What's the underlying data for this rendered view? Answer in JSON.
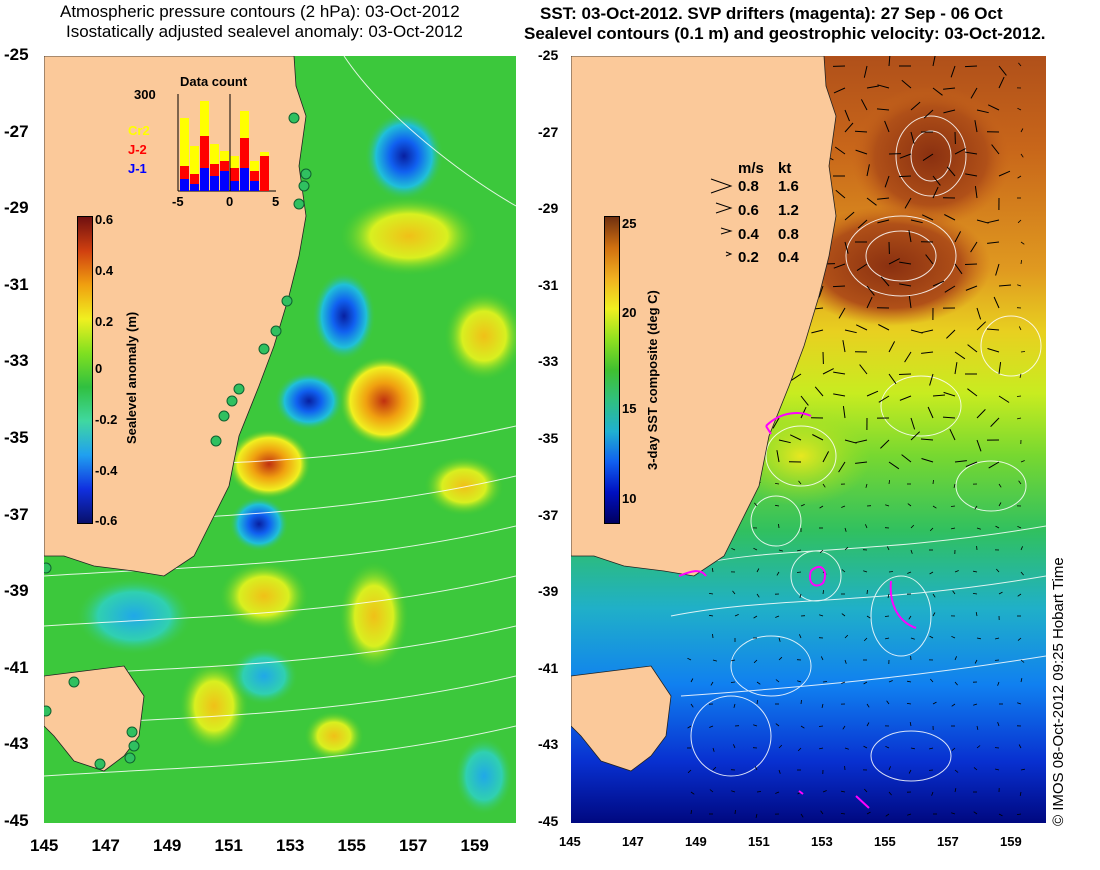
{
  "left": {
    "title_line1": "Atmospheric pressure contours (2 hPa): 03-Oct-2012",
    "title_line2": "Isostatically adjusted sealevel anomaly: 03-Oct-2012",
    "y_ticks": [
      "-25",
      "-27",
      "-29",
      "-31",
      "-33",
      "-35",
      "-37",
      "-39",
      "-41",
      "-43",
      "-45"
    ],
    "x_ticks": [
      "145",
      "147",
      "149",
      "151",
      "153",
      "155",
      "157",
      "159"
    ],
    "colorbar": {
      "label": "Sealevel anomaly (m)",
      "ticks": [
        "0.6",
        "0.4",
        "0.2",
        "0",
        "-0.2",
        "-0.4",
        "-0.6"
      ],
      "range": [
        -0.6,
        0.6
      ]
    },
    "inset": {
      "title": "Data count",
      "y_max_label": "300",
      "legend": [
        {
          "name": "Cr2",
          "color": "#ffff00"
        },
        {
          "name": "J-2",
          "color": "#ff0000"
        },
        {
          "name": "J-1",
          "color": "#0000ff"
        }
      ],
      "x_ticks": [
        "-5",
        "0",
        "5"
      ]
    }
  },
  "right": {
    "title_line1": "SST: 03-Oct-2012. SVP drifters (magenta): 27 Sep - 06 Oct",
    "title_line2": "Sealevel contours (0.1 m) and geostrophic velocity: 03-Oct-2012.",
    "y_ticks": [
      "-25",
      "-27",
      "-29",
      "-31",
      "-33",
      "-35",
      "-37",
      "-39",
      "-41",
      "-43",
      "-45"
    ],
    "x_ticks": [
      "145",
      "147",
      "149",
      "151",
      "153",
      "155",
      "157",
      "159"
    ],
    "colorbar": {
      "label": "3-day SST composite (deg C)",
      "ticks": [
        "25",
        "20",
        "15",
        "10"
      ],
      "range": [
        9,
        25
      ]
    },
    "velocity_legend": {
      "header_ms": "m/s",
      "header_kt": "kt",
      "rows": [
        {
          "ms": "0.8",
          "kt": "1.6"
        },
        {
          "ms": "0.6",
          "kt": "1.2"
        },
        {
          "ms": "0.4",
          "kt": "0.8"
        },
        {
          "ms": "0.2",
          "kt": "0.4"
        }
      ]
    }
  },
  "credit": "© IMOS 08-Oct-2012 09:25 Hobart Time",
  "colors": {
    "land": "#fbc99a",
    "sla_scale": [
      "#08106b",
      "#1030e0",
      "#20a0f0",
      "#40d8a0",
      "#30c040",
      "#80e020",
      "#f0f020",
      "#f0a010",
      "#d04010",
      "#701010"
    ],
    "sst_scale": [
      "#000060",
      "#0010c0",
      "#1060f0",
      "#20b0d0",
      "#30c080",
      "#40c030",
      "#90e020",
      "#f0f020",
      "#f0b020",
      "#d07010",
      "#703010"
    ],
    "drifter": "#ff00ff"
  }
}
